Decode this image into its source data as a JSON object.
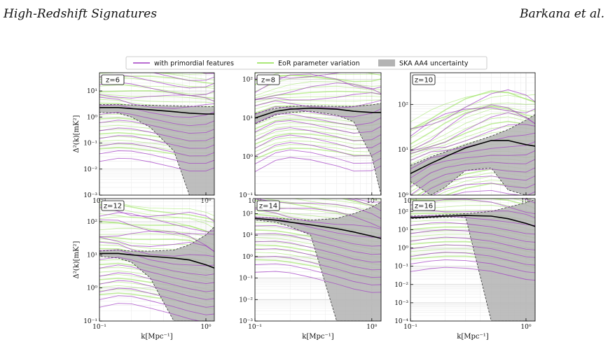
{
  "header": {
    "left": "High-Redshift Signatures",
    "right": "Barkana et al."
  },
  "legend": [
    {
      "label": "with primordial features",
      "kind": "line",
      "color": "#a23cc4"
    },
    {
      "label": "EoR parameter variation",
      "kind": "line",
      "color": "#8ee04a"
    },
    {
      "label": "SKA AA4 uncertainty",
      "kind": "patch",
      "color": "#b3b3b3"
    }
  ],
  "colors": {
    "primordial": "#a23cc4",
    "eor": "#8ee04a",
    "fiducial": "#000000",
    "uncertainty": "#b3b3b3"
  },
  "chart_data": [
    {
      "type": "line",
      "panel": "z=6",
      "xlabel": "",
      "ylabel": "Δ²(k)[mK²]",
      "xscale": "log",
      "yscale": "log",
      "xlim": [
        0.1,
        1.2
      ],
      "ylim": [
        0.001,
        50
      ],
      "xticks": [
        "10⁻¹",
        "10⁰"
      ],
      "yticks": [
        {
          "v": 0.001,
          "label": "10⁻³"
        },
        {
          "v": 0.01,
          "label": "10⁻²"
        },
        {
          "v": 0.1,
          "label": "10⁻¹"
        },
        {
          "v": 1,
          "label": "10⁰"
        },
        {
          "v": 10,
          "label": "10¹"
        }
      ],
      "x": [
        0.1,
        0.15,
        0.2,
        0.3,
        0.5,
        0.7,
        1.0,
        1.2
      ],
      "fiducial": [
        2.3,
        2.3,
        2.1,
        1.9,
        1.6,
        1.4,
        1.3,
        1.3
      ],
      "uncertainty_lower": [
        1.5,
        1.4,
        1.0,
        0.4,
        0.05,
        0.001,
        0.001,
        0.001
      ],
      "uncertainty_upper": [
        3.0,
        3.0,
        2.9,
        2.8,
        2.7,
        2.6,
        2.5,
        2.5
      ]
    },
    {
      "type": "line",
      "panel": "z=8",
      "xlabel": "",
      "ylabel": "",
      "xscale": "log",
      "yscale": "log",
      "xlim": [
        0.1,
        1.2
      ],
      "ylim": [
        0.1,
        150
      ],
      "xticks": [
        "10⁻¹",
        "10⁰"
      ],
      "yticks": [
        {
          "v": 0.1,
          "label": "10⁻¹"
        },
        {
          "v": 1,
          "label": "10⁰"
        },
        {
          "v": 10,
          "label": "10¹"
        },
        {
          "v": 100,
          "label": "10²"
        }
      ],
      "x": [
        0.1,
        0.15,
        0.2,
        0.3,
        0.5,
        0.7,
        1.0,
        1.2
      ],
      "fiducial": [
        10,
        15,
        17,
        18,
        17,
        15,
        14,
        14
      ],
      "uncertainty_lower": [
        7,
        12,
        14,
        15,
        12,
        8,
        1,
        0.1
      ],
      "uncertainty_upper": [
        13,
        18,
        20,
        21,
        20,
        20,
        22,
        24
      ]
    },
    {
      "type": "line",
      "panel": "z=10",
      "xlabel": "",
      "ylabel": "",
      "xscale": "log",
      "yscale": "log",
      "xlim": [
        0.1,
        1.2
      ],
      "ylim": [
        1,
        500
      ],
      "xticks": [
        "10⁻¹",
        "10⁰"
      ],
      "yticks": [
        {
          "v": 1,
          "label": "10⁰"
        },
        {
          "v": 10,
          "label": "10¹"
        },
        {
          "v": 100,
          "label": "10²"
        }
      ],
      "x": [
        0.1,
        0.15,
        0.2,
        0.3,
        0.5,
        0.7,
        1.0,
        1.2
      ],
      "fiducial": [
        3,
        5,
        7,
        11,
        16,
        16,
        13,
        12
      ],
      "uncertainty_lower": [
        2,
        1,
        1.5,
        3.5,
        4,
        1.3,
        1,
        1
      ],
      "uncertainty_upper": [
        4.5,
        7,
        9,
        13,
        20,
        28,
        45,
        60
      ]
    },
    {
      "type": "line",
      "panel": "z=12",
      "xlabel": "k[Mpc⁻¹]",
      "ylabel": "Δ²(k)[mK²]",
      "xscale": "log",
      "yscale": "log",
      "xlim": [
        0.1,
        1.2
      ],
      "ylim": [
        0.1,
        500
      ],
      "xticks": [
        "10⁻¹",
        "10⁰"
      ],
      "yticks": [
        {
          "v": 0.1,
          "label": "10⁻¹"
        },
        {
          "v": 1,
          "label": "10⁰"
        },
        {
          "v": 10,
          "label": "10¹"
        },
        {
          "v": 100,
          "label": "10²"
        }
      ],
      "x": [
        0.1,
        0.15,
        0.2,
        0.3,
        0.5,
        0.7,
        1.0,
        1.2
      ],
      "fiducial": [
        11,
        11,
        10,
        9,
        8,
        7,
        5,
        4
      ],
      "uncertainty_lower": [
        9,
        8,
        6,
        2,
        0.1,
        0.1,
        0.1,
        0.1
      ],
      "uncertainty_upper": [
        13,
        14,
        13,
        13,
        14,
        20,
        40,
        70
      ]
    },
    {
      "type": "line",
      "panel": "z=14",
      "xlabel": "k[Mpc⁻¹]",
      "ylabel": "",
      "xscale": "log",
      "yscale": "log",
      "xlim": [
        0.1,
        1.2
      ],
      "ylim": [
        0.001,
        500
      ],
      "xticks": [
        "10⁻¹",
        "10⁰"
      ],
      "yticks": [
        {
          "v": 0.001,
          "label": "10⁻³"
        },
        {
          "v": 0.01,
          "label": "10⁻²"
        },
        {
          "v": 0.1,
          "label": "10⁻¹"
        },
        {
          "v": 1,
          "label": "10⁰"
        },
        {
          "v": 10,
          "label": "10¹"
        },
        {
          "v": 100,
          "label": "10²"
        }
      ],
      "x": [
        0.1,
        0.15,
        0.2,
        0.3,
        0.5,
        0.7,
        1.0,
        1.2
      ],
      "fiducial": [
        60,
        50,
        40,
        30,
        20,
        14,
        9,
        7
      ],
      "uncertainty_lower": [
        50,
        40,
        25,
        10,
        0.001,
        0.001,
        0.001,
        0.001
      ],
      "uncertainty_upper": [
        70,
        62,
        55,
        50,
        60,
        100,
        200,
        350
      ]
    },
    {
      "type": "line",
      "panel": "z=16",
      "xlabel": "k[Mpc⁻¹]",
      "ylabel": "",
      "xscale": "log",
      "yscale": "log",
      "xlim": [
        0.1,
        1.2
      ],
      "ylim": [
        0.0001,
        500
      ],
      "xticks": [
        "10⁻¹",
        "10⁰"
      ],
      "yticks": [
        {
          "v": 0.0001,
          "label": "10⁻⁴"
        },
        {
          "v": 0.001,
          "label": "10⁻³"
        },
        {
          "v": 0.01,
          "label": "10⁻²"
        },
        {
          "v": 0.1,
          "label": "10⁻¹"
        },
        {
          "v": 1,
          "label": "10⁰"
        },
        {
          "v": 10,
          "label": "10¹"
        },
        {
          "v": 100,
          "label": "10²"
        }
      ],
      "x": [
        0.1,
        0.15,
        0.2,
        0.3,
        0.5,
        0.7,
        1.0,
        1.2
      ],
      "fiducial": [
        45,
        50,
        55,
        60,
        55,
        40,
        22,
        15
      ],
      "uncertainty_lower": [
        40,
        45,
        48,
        50,
        0.0001,
        0.0001,
        0.0001,
        0.0001
      ],
      "uncertainty_upper": [
        55,
        60,
        65,
        75,
        100,
        170,
        300,
        450
      ]
    }
  ]
}
